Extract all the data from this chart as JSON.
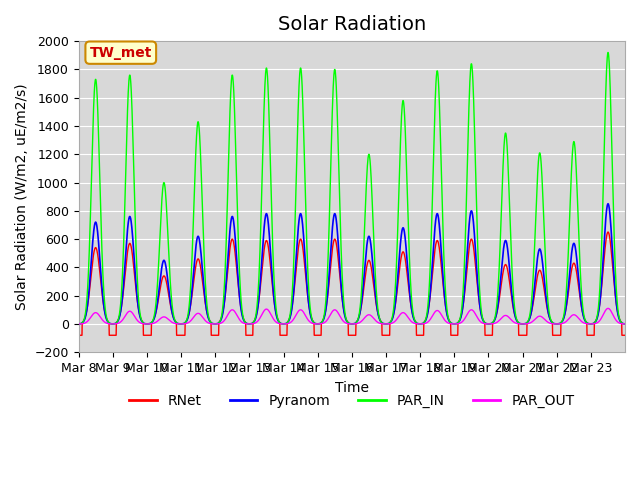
{
  "title": "Solar Radiation",
  "ylabel": "Solar Radiation (W/m2, uE/m2/s)",
  "xlabel": "Time",
  "ylim": [
    -200,
    2000
  ],
  "n_days": 16,
  "x_tick_labels": [
    "Mar 8",
    "Mar 9",
    "Mar 10",
    "Mar 11",
    "Mar 12",
    "Mar 13",
    "Mar 14",
    "Mar 15",
    "Mar 16",
    "Mar 17",
    "Mar 18",
    "Mar 19",
    "Mar 20",
    "Mar 21",
    "Mar 22",
    "Mar 23"
  ],
  "yticks": [
    -200,
    0,
    200,
    400,
    600,
    800,
    1000,
    1200,
    1400,
    1600,
    1800,
    2000
  ],
  "colors": {
    "RNet": "#ff0000",
    "Pyranom": "#0000ff",
    "PAR_IN": "#00ff00",
    "PAR_OUT": "#ff00ff"
  },
  "annotation_text": "TW_met",
  "annotation_bbox_facecolor": "#ffffcc",
  "annotation_bbox_edgecolor": "#cc8800",
  "plot_bg_color": "#d8d8d8",
  "grid_color": "#ffffff",
  "title_fontsize": 14,
  "label_fontsize": 10,
  "tick_fontsize": 9,
  "par_in_peaks": [
    1730,
    1760,
    1000,
    1430,
    1760,
    1810,
    1810,
    1800,
    1200,
    1580,
    1790,
    1840,
    1350,
    1210,
    1290,
    1920
  ],
  "pyranom_peaks": [
    720,
    760,
    450,
    620,
    760,
    780,
    780,
    780,
    620,
    680,
    780,
    800,
    590,
    530,
    570,
    850
  ],
  "rnet_peaks": [
    540,
    570,
    340,
    460,
    600,
    590,
    600,
    600,
    450,
    510,
    590,
    600,
    420,
    380,
    430,
    650
  ],
  "par_out_peaks": [
    80,
    90,
    50,
    75,
    100,
    105,
    100,
    100,
    65,
    80,
    95,
    100,
    60,
    55,
    65,
    110
  ],
  "rnet_night_val": -80,
  "points_per_day": 144
}
